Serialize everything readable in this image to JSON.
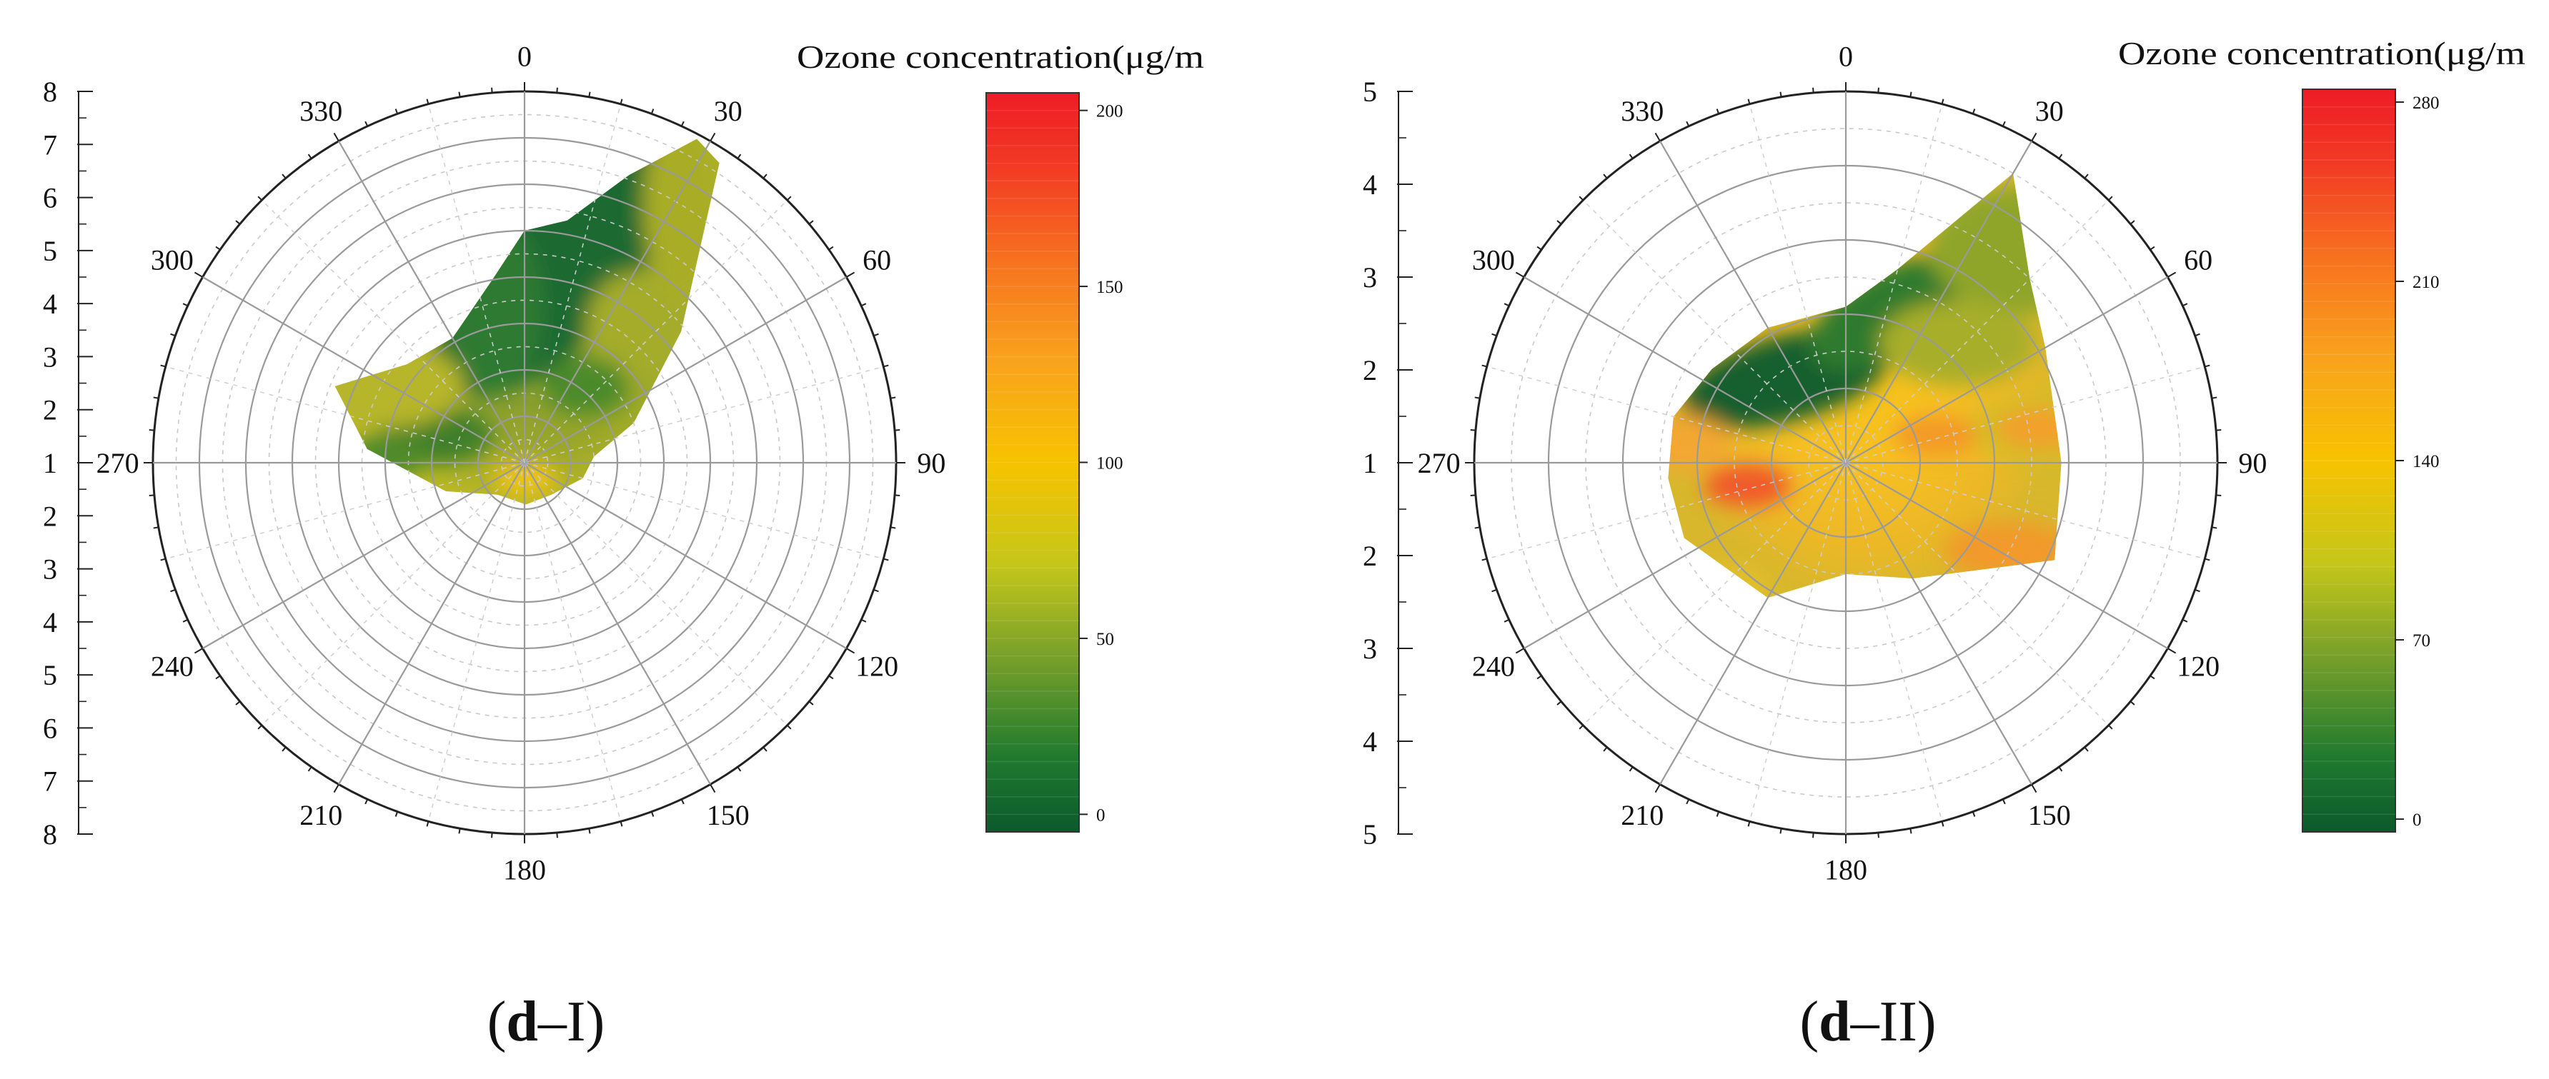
{
  "chart_data": [
    {
      "id": "d-I",
      "type": "polar_contour",
      "panel_label": {
        "bold": "d",
        "rest": "–I",
        "open": "(",
        "close": ")"
      },
      "angle_labels": [
        "0",
        "30",
        "60",
        "90",
        "120",
        "150",
        "180",
        "210",
        "240",
        "270",
        "300",
        "330"
      ],
      "radial_range": [
        0,
        8
      ],
      "radial_tick_labels": [
        "8",
        "7",
        "6",
        "5",
        "4",
        "3",
        "2",
        "1",
        "2",
        "3",
        "4",
        "5",
        "6",
        "7",
        "8"
      ],
      "colorbar": {
        "title": "Ozone concentration(μg/m",
        "range": [
          -5,
          205
        ],
        "ticks": [
          "0",
          "50",
          "100",
          "150",
          "200"
        ],
        "tick_values": [
          0,
          50,
          100,
          150,
          200
        ]
      },
      "data_boundary": [
        {
          "angle": 0,
          "r": 5.0
        },
        {
          "angle": 10,
          "r": 5.3
        },
        {
          "angle": 20,
          "r": 6.6
        },
        {
          "angle": 28,
          "r": 7.9
        },
        {
          "angle": 33,
          "r": 7.7
        },
        {
          "angle": 50,
          "r": 4.4
        },
        {
          "angle": 70,
          "r": 2.5
        },
        {
          "angle": 85,
          "r": 1.5
        },
        {
          "angle": 105,
          "r": 1.3
        },
        {
          "angle": 140,
          "r": 0.9
        },
        {
          "angle": 178,
          "r": 0.9
        },
        {
          "angle": 220,
          "r": 0.9
        },
        {
          "angle": 250,
          "r": 1.8
        },
        {
          "angle": 275,
          "r": 3.4
        },
        {
          "angle": 292,
          "r": 4.4
        },
        {
          "angle": 310,
          "r": 3.3
        },
        {
          "angle": 330,
          "r": 3.1
        },
        {
          "angle": 350,
          "r": 4.0
        }
      ]
    },
    {
      "id": "d-II",
      "type": "polar_contour",
      "panel_label": {
        "bold": "d",
        "rest": "–II",
        "open": "(",
        "close": ")"
      },
      "angle_labels": [
        "0",
        "30",
        "60",
        "90",
        "120",
        "150",
        "180",
        "210",
        "240",
        "270",
        "300",
        "330"
      ],
      "radial_range": [
        0,
        5
      ],
      "radial_tick_labels": [
        "5",
        "4",
        "3",
        "2",
        "1",
        "2",
        "3",
        "4",
        "5"
      ],
      "colorbar": {
        "title": "Ozone concentration(μg/m",
        "range": [
          -5,
          285
        ],
        "ticks": [
          "0",
          "70",
          "140",
          "210",
          "280"
        ],
        "tick_values": [
          0,
          70,
          140,
          210,
          280
        ]
      },
      "data_boundary": [
        {
          "angle": 0,
          "r": 2.1
        },
        {
          "angle": 15,
          "r": 2.7
        },
        {
          "angle": 30,
          "r": 4.5
        },
        {
          "angle": 45,
          "r": 3.5
        },
        {
          "angle": 60,
          "r": 3.1
        },
        {
          "angle": 90,
          "r": 2.9
        },
        {
          "angle": 115,
          "r": 3.1
        },
        {
          "angle": 150,
          "r": 1.8
        },
        {
          "angle": 180,
          "r": 1.5
        },
        {
          "angle": 210,
          "r": 2.1
        },
        {
          "angle": 245,
          "r": 2.4
        },
        {
          "angle": 265,
          "r": 2.4
        },
        {
          "angle": 285,
          "r": 2.4
        },
        {
          "angle": 305,
          "r": 2.2
        },
        {
          "angle": 330,
          "r": 2.1
        }
      ]
    }
  ]
}
